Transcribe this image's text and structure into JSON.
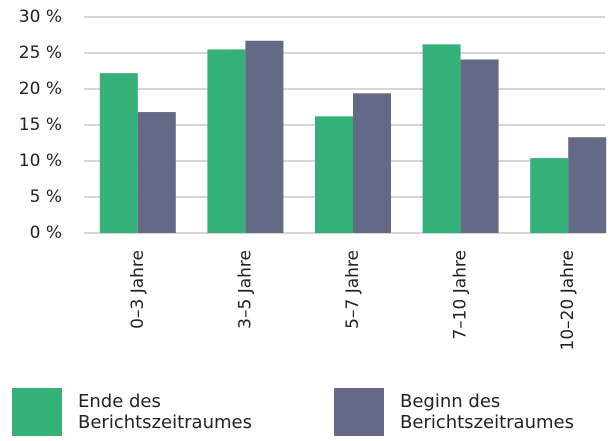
{
  "chart_data": {
    "type": "bar",
    "categories": [
      "0–3 Jahre",
      "3–5 Jahre",
      "5–7 Jahre",
      "7–10 Jahre",
      "10–20 Jahre"
    ],
    "series": [
      {
        "name": "Ende des Berichtszeitraumes",
        "color": "#35b078",
        "values": [
          22.2,
          25.5,
          16.2,
          26.2,
          10.4
        ]
      },
      {
        "name": "Beginn des Berichtszeitraumes",
        "color": "#646a86",
        "values": [
          16.8,
          26.7,
          19.4,
          24.1,
          13.3
        ]
      }
    ],
    "ylim": [
      0,
      30
    ],
    "yticks": [
      {
        "value": 0,
        "label": "0 %"
      },
      {
        "value": 5,
        "label": "5 %"
      },
      {
        "value": 10,
        "label": "10 %"
      },
      {
        "value": 15,
        "label": "15 %"
      },
      {
        "value": 20,
        "label": "20 %"
      },
      {
        "value": 25,
        "label": "25 %"
      },
      {
        "value": 30,
        "label": "30 %"
      }
    ],
    "grid": true
  }
}
